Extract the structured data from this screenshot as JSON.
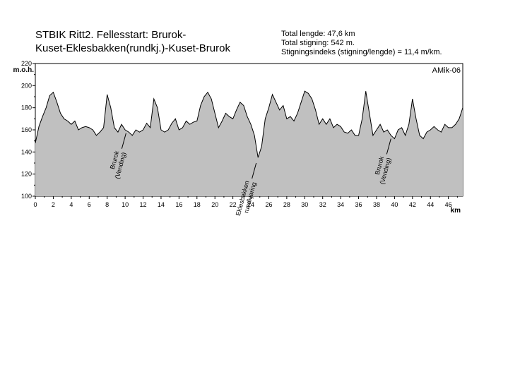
{
  "header": {
    "title_line1": "STBIK Ritt2. Fellesstart:  Brurok-",
    "title_line2": "Kuset-Eklesbakken(rundkj.)-Kuset-Brurok",
    "total_length": "Total lengde: 47,6 km",
    "total_climb": "Total stigning: 542 m.",
    "climb_index": "Stigningsindeks (stigning/lengde) = 11,4 m/km."
  },
  "chart_data": {
    "type": "area",
    "ylabel": "m.o.h.",
    "xlabel": "km",
    "xlim": [
      0,
      47.6
    ],
    "ylim": [
      100,
      220
    ],
    "x_ticks": [
      0,
      2,
      4,
      6,
      8,
      10,
      12,
      14,
      16,
      18,
      20,
      22,
      24,
      26,
      28,
      30,
      32,
      34,
      36,
      38,
      40,
      42,
      44,
      46
    ],
    "y_ticks": [
      100,
      120,
      140,
      160,
      180,
      200,
      220
    ],
    "grid": false,
    "watermark": "AMik-06",
    "fill_color": "#c0c0c0",
    "line_color": "#000000",
    "x": [
      0,
      0.4,
      0.8,
      1.2,
      1.6,
      2.0,
      2.4,
      2.8,
      3.2,
      3.6,
      4.0,
      4.4,
      4.8,
      5.2,
      5.6,
      6.0,
      6.4,
      6.8,
      7.2,
      7.6,
      8.0,
      8.4,
      8.8,
      9.2,
      9.6,
      10.0,
      10.4,
      10.8,
      11.2,
      11.6,
      12.0,
      12.4,
      12.8,
      13.2,
      13.6,
      14.0,
      14.4,
      14.8,
      15.2,
      15.6,
      16.0,
      16.4,
      16.8,
      17.2,
      17.6,
      18.0,
      18.4,
      18.8,
      19.2,
      19.6,
      20.0,
      20.4,
      20.8,
      21.2,
      21.6,
      22.0,
      22.4,
      22.8,
      23.2,
      23.6,
      24.0,
      24.4,
      24.8,
      25.2,
      25.6,
      26.0,
      26.4,
      26.8,
      27.2,
      27.6,
      28.0,
      28.4,
      28.8,
      29.2,
      29.6,
      30.0,
      30.4,
      30.8,
      31.2,
      31.6,
      32.0,
      32.4,
      32.8,
      33.2,
      33.6,
      34.0,
      34.4,
      34.8,
      35.2,
      35.6,
      36.0,
      36.4,
      36.8,
      37.2,
      37.6,
      38.0,
      38.4,
      38.8,
      39.2,
      39.6,
      40.0,
      40.4,
      40.8,
      41.2,
      41.6,
      42.0,
      42.4,
      42.8,
      43.2,
      43.6,
      44.0,
      44.4,
      44.8,
      45.2,
      45.6,
      46.0,
      46.4,
      46.8,
      47.2,
      47.6
    ],
    "y": [
      148,
      163,
      172,
      180,
      191,
      194,
      185,
      175,
      170,
      168,
      165,
      168,
      160,
      162,
      163,
      162,
      160,
      155,
      158,
      162,
      192,
      180,
      162,
      158,
      165,
      160,
      158,
      155,
      160,
      158,
      160,
      166,
      162,
      188,
      180,
      160,
      158,
      160,
      166,
      170,
      160,
      162,
      168,
      165,
      167,
      168,
      182,
      190,
      194,
      188,
      175,
      162,
      168,
      175,
      172,
      170,
      178,
      185,
      182,
      172,
      165,
      155,
      135,
      145,
      170,
      180,
      192,
      185,
      178,
      182,
      170,
      172,
      168,
      175,
      185,
      195,
      193,
      188,
      178,
      165,
      170,
      165,
      170,
      162,
      165,
      163,
      158,
      157,
      160,
      155,
      155,
      170,
      195,
      175,
      155,
      160,
      165,
      158,
      160,
      155,
      152,
      160,
      162,
      155,
      165,
      188,
      170,
      155,
      152,
      158,
      160,
      163,
      160,
      158,
      165,
      162,
      162,
      165,
      170,
      180
    ],
    "annotations": [
      {
        "line1": "Brurok",
        "line2": "(Vending)",
        "x": 10.1,
        "y": 157
      },
      {
        "line1": "Eklesbakken",
        "line2": "rundkjøring",
        "x": 24.6,
        "y": 130
      },
      {
        "line1": "Brurok",
        "line2": "(Vending)",
        "x": 39.6,
        "y": 152
      }
    ]
  }
}
